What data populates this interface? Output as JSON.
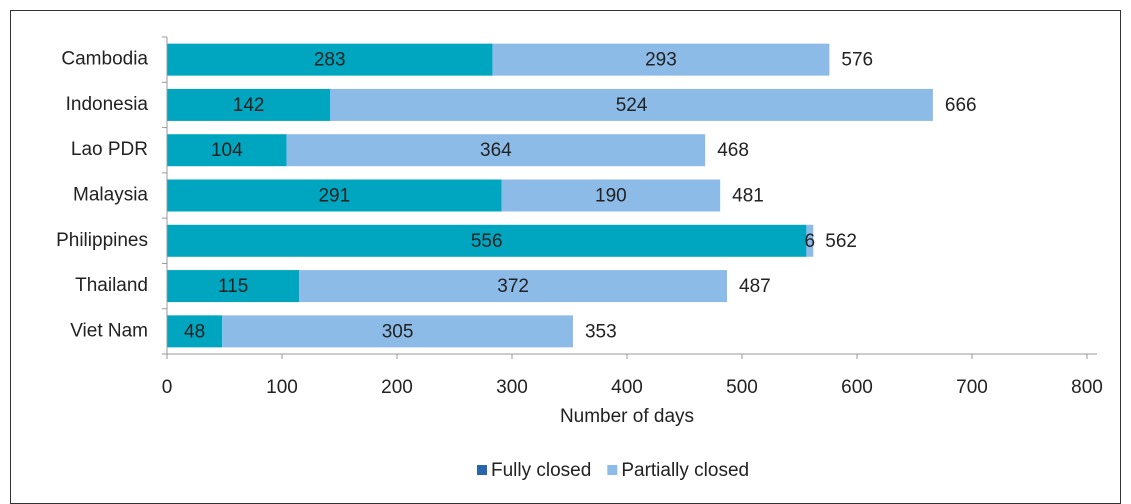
{
  "chart_data": {
    "type": "stacked-bar-horizontal",
    "categories": [
      "Cambodia",
      "Indonesia",
      "Lao PDR",
      "Malaysia",
      "Philippines",
      "Thailand",
      "Viet Nam"
    ],
    "series": [
      {
        "name": "Fully closed",
        "color": "#00a6bf",
        "legend_color": "#2a64ad",
        "values": [
          283,
          142,
          104,
          291,
          556,
          115,
          48
        ]
      },
      {
        "name": "Partially closed",
        "color": "#8dbbe8",
        "legend_color": "#8dbbe8",
        "values": [
          293,
          524,
          364,
          190,
          6,
          372,
          305
        ]
      }
    ],
    "totals": [
      576,
      666,
      468,
      481,
      562,
      487,
      353
    ],
    "xlabel": "Number of days",
    "xlim": [
      0,
      800
    ],
    "xticks": [
      0,
      100,
      200,
      300,
      400,
      500,
      600,
      700,
      800
    ],
    "legend": "bottom"
  }
}
